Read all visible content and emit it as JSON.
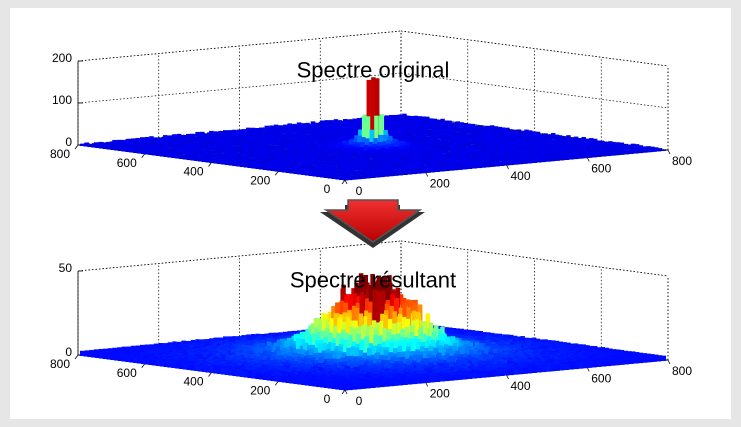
{
  "chart_data": [
    {
      "type": "surface",
      "title": "Spectre original",
      "xlim": [
        0,
        800
      ],
      "xticks": [
        0,
        200,
        400,
        600,
        800
      ],
      "ylim": [
        0,
        800
      ],
      "yticks": [
        0,
        200,
        400,
        600,
        800
      ],
      "zlim": [
        0,
        200
      ],
      "zticks": [
        0,
        100,
        200
      ],
      "grid": true
    },
    {
      "type": "surface",
      "title": "Spectre résultant",
      "xlim": [
        0,
        800
      ],
      "xticks": [
        0,
        200,
        400,
        600,
        800
      ],
      "ylim": [
        0,
        800
      ],
      "yticks": [
        0,
        200,
        400,
        600,
        800
      ],
      "zlim": [
        0,
        50
      ],
      "zticks": [
        0,
        50
      ],
      "grid": true
    }
  ]
}
